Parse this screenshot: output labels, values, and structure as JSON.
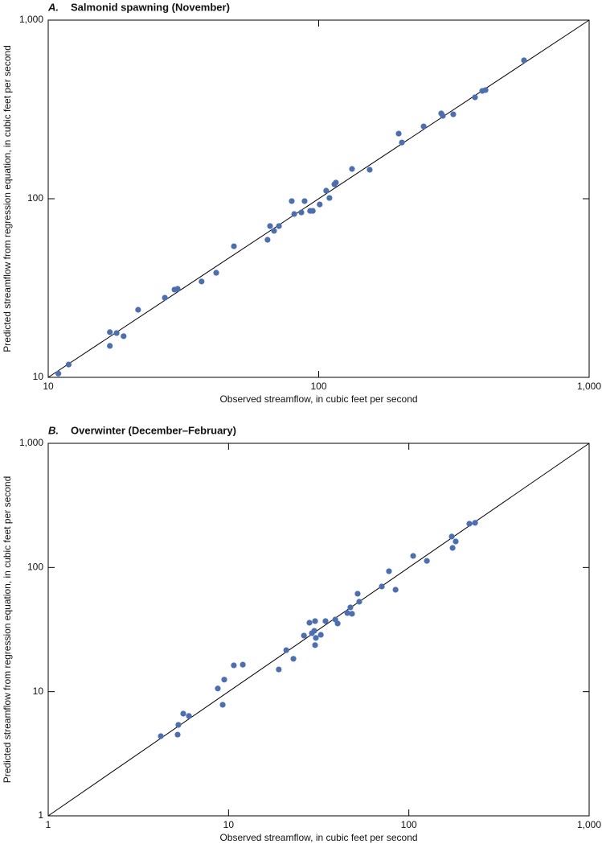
{
  "chart_data": [
    {
      "type": "scatter",
      "panel_label": "A.",
      "title": "Salmonid spawning (November)",
      "xlabel": "Observed streamflow, in cubic feet per second",
      "ylabel": "Predicted streamflow from regression equation, in cubic feet per second",
      "log_x": true,
      "log_y": true,
      "identity_line": true,
      "color": "#4a6fb5",
      "xlim": [
        10,
        1000
      ],
      "ylim": [
        10,
        1000
      ],
      "xticks": [
        10,
        100,
        {
          "value": 1000,
          "label": "1,000"
        }
      ],
      "yticks": [
        10,
        100,
        {
          "value": 1000,
          "label": "1,000"
        }
      ],
      "x": [
        10.9,
        11.9,
        16.9,
        16.9,
        17.9,
        19.0,
        21.5,
        27.0,
        29.3,
        30.1,
        36.9,
        41.8,
        48.6,
        64.7,
        66.1,
        68.4,
        71.3,
        79.5,
        81.2,
        86.3,
        88.7,
        93.0,
        95.1,
        100.9,
        106.6,
        109.6,
        114.3,
        115.8,
        132.8,
        154.4,
        197.6,
        203.1,
        244.4,
        283.9,
        287.8,
        314.5,
        378.4,
        402.7,
        413.9,
        574.4
      ],
      "values": [
        10.5,
        11.8,
        17.9,
        15.0,
        17.7,
        17.0,
        23.9,
        27.9,
        31.0,
        31.3,
        34.4,
        38.5,
        54.2,
        58.9,
        70.3,
        66.1,
        70.3,
        97.0,
        82.1,
        83.8,
        97.0,
        85.5,
        85.5,
        92.9,
        110.9,
        101.0,
        120.5,
        123.1,
        146.8,
        145.3,
        231.5,
        206.5,
        254.0,
        300.3,
        291.0,
        297.0,
        369.6,
        401.5,
        405.9,
        595.7
      ]
    },
    {
      "type": "scatter",
      "panel_label": "B.",
      "title": "Overwinter (December–February)",
      "xlabel": "Observed streamflow, in cubic feet per second",
      "ylabel": "Predicted streamflow from regression equation, in cubic feet per second",
      "log_x": true,
      "log_y": true,
      "identity_line": true,
      "color": "#4a6fb5",
      "xlim": [
        1,
        1000
      ],
      "ylim": [
        1,
        1000
      ],
      "xticks": [
        1,
        10,
        100,
        {
          "value": 1000,
          "label": "1,000"
        }
      ],
      "yticks": [
        1,
        10,
        100,
        {
          "value": 1000,
          "label": "1,000"
        }
      ],
      "x": [
        4.21,
        5.22,
        5.27,
        5.61,
        6.03,
        8.72,
        9.47,
        9.28,
        10.7,
        12.0,
        19.0,
        20.9,
        22.9,
        26.2,
        28.1,
        29.0,
        29.9,
        30.2,
        30.2,
        30.5,
        32.5,
        34.5,
        39.1,
        40.3,
        45.6,
        47.4,
        48.4,
        52.0,
        53.1,
        70.8,
        77.6,
        84.4,
        105.7,
        125.9,
        173.0,
        174.8,
        182.0,
        216.6,
        233.0
      ],
      "values": [
        4.38,
        4.51,
        5.4,
        6.65,
        6.37,
        10.6,
        12.5,
        7.84,
        16.3,
        16.5,
        15.1,
        21.6,
        18.4,
        28.3,
        35.9,
        29.6,
        30.9,
        37.0,
        23.7,
        27.1,
        28.7,
        37.0,
        38.1,
        35.4,
        43.0,
        47.7,
        42.4,
        61.5,
        53.0,
        70.3,
        93.3,
        66.2,
        124,
        113,
        177.5,
        143.8,
        162,
        225,
        229
      ]
    }
  ]
}
